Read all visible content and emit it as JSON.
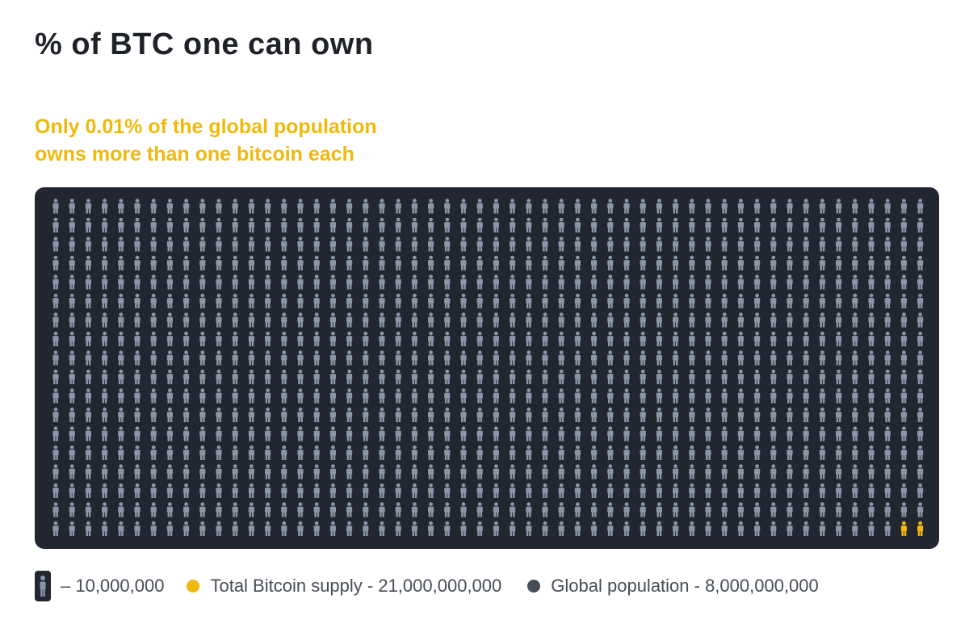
{
  "chart_data": {
    "type": "pictogram",
    "title": "% of BTC one can own",
    "subtitle_lines": [
      "Only 0.01% of the global population",
      "owns more than one bitcoin each"
    ],
    "icon_value": 10000000,
    "grid_rows": 18,
    "grid_cols": 54,
    "series": [
      {
        "name": "Global population",
        "value": 8000000000,
        "color": "#8a96a8"
      },
      {
        "name": "Total Bitcoin supply",
        "value": 21000000000,
        "color": "#f0b90b"
      }
    ],
    "highlighted_icons": 2,
    "legend": [
      {
        "key": "unit",
        "icon": "person-icon",
        "label": "– 10,000,000"
      },
      {
        "key": "btc",
        "icon": "yellow-dot",
        "color": "#f0b90b",
        "label": "Total Bitcoin supply - 21,000,000,000"
      },
      {
        "key": "pop",
        "icon": "gray-dot",
        "color": "#474d57",
        "label": "Global population - 8,000,000,000"
      }
    ],
    "colors": {
      "panel_background": "#222630",
      "person_gray": "#8a96a8",
      "person_highlight": "#f0b90b",
      "title": "#1f2329",
      "subtitle": "#f0b90b"
    }
  }
}
